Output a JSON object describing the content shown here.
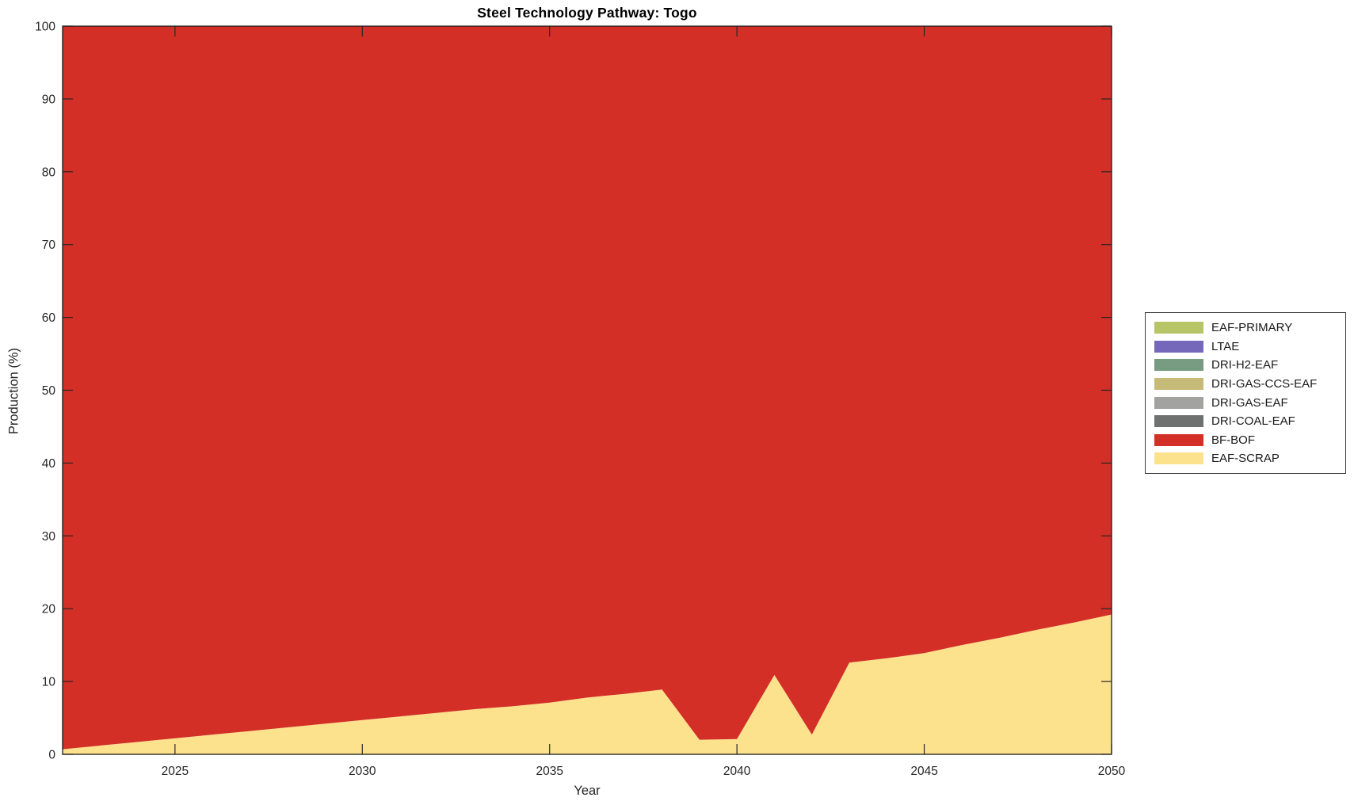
{
  "chart": {
    "title": "Steel Technology Pathway: Togo",
    "xlabel": "Year",
    "ylabel": "Production (%)"
  },
  "chart_data": {
    "type": "area",
    "stacked": true,
    "title": "Steel Technology Pathway: Togo",
    "xlabel": "Year",
    "ylabel": "Production (%)",
    "xlim": [
      2022,
      2050
    ],
    "ylim": [
      0,
      100
    ],
    "x_ticks": [
      "2025",
      "2030",
      "2035",
      "2040",
      "2045",
      "2050"
    ],
    "y_ticks": [
      "0",
      "10",
      "20",
      "30",
      "40",
      "50",
      "60",
      "70",
      "80",
      "90",
      "100"
    ],
    "grid": false,
    "legend_position": "outside-right",
    "axis_color": "#262626",
    "x": [
      2022,
      2023,
      2024,
      2025,
      2026,
      2027,
      2028,
      2029,
      2030,
      2031,
      2032,
      2033,
      2034,
      2035,
      2036,
      2037,
      2038,
      2039,
      2040,
      2041,
      2042,
      2043,
      2044,
      2045,
      2046,
      2047,
      2048,
      2049,
      2050
    ],
    "series": [
      {
        "name": "EAF-SCRAP",
        "color": "#FDE28E",
        "values": [
          0.7,
          1.2,
          1.7,
          2.2,
          2.7,
          3.2,
          3.7,
          4.2,
          4.7,
          5.2,
          5.7,
          6.2,
          6.6,
          7.1,
          7.8,
          8.3,
          8.9,
          2.0,
          2.1,
          10.9,
          2.7,
          12.6,
          13.2,
          13.9,
          15.0,
          16.0,
          17.1,
          18.1,
          19.2
        ]
      },
      {
        "name": "BF-BOF",
        "color": "#D32F27",
        "values": [
          99.3,
          98.8,
          98.3,
          97.8,
          97.3,
          96.8,
          96.3,
          95.8,
          95.3,
          94.8,
          94.3,
          93.8,
          93.4,
          92.9,
          92.2,
          91.7,
          91.1,
          98.0,
          97.9,
          89.1,
          97.3,
          87.4,
          86.8,
          86.1,
          85.0,
          84.0,
          82.9,
          81.9,
          80.8
        ]
      },
      {
        "name": "DRI-COAL-EAF",
        "color": "#6F7170",
        "values": [
          0,
          0,
          0,
          0,
          0,
          0,
          0,
          0,
          0,
          0,
          0,
          0,
          0,
          0,
          0,
          0,
          0,
          0,
          0,
          0,
          0,
          0,
          0,
          0,
          0,
          0,
          0,
          0,
          0
        ]
      },
      {
        "name": "DRI-GAS-EAF",
        "color": "#A2A2A0",
        "values": [
          0,
          0,
          0,
          0,
          0,
          0,
          0,
          0,
          0,
          0,
          0,
          0,
          0,
          0,
          0,
          0,
          0,
          0,
          0,
          0,
          0,
          0,
          0,
          0,
          0,
          0,
          0,
          0,
          0
        ]
      },
      {
        "name": "DRI-GAS-CCS-EAF",
        "color": "#C6BA78",
        "values": [
          0,
          0,
          0,
          0,
          0,
          0,
          0,
          0,
          0,
          0,
          0,
          0,
          0,
          0,
          0,
          0,
          0,
          0,
          0,
          0,
          0,
          0,
          0,
          0,
          0,
          0,
          0,
          0,
          0
        ]
      },
      {
        "name": "DRI-H2-EAF",
        "color": "#779C81",
        "values": [
          0,
          0,
          0,
          0,
          0,
          0,
          0,
          0,
          0,
          0,
          0,
          0,
          0,
          0,
          0,
          0,
          0,
          0,
          0,
          0,
          0,
          0,
          0,
          0,
          0,
          0,
          0,
          0,
          0
        ]
      },
      {
        "name": "LTAE",
        "color": "#7568BB",
        "values": [
          0,
          0,
          0,
          0,
          0,
          0,
          0,
          0,
          0,
          0,
          0,
          0,
          0,
          0,
          0,
          0,
          0,
          0,
          0,
          0,
          0,
          0,
          0,
          0,
          0,
          0,
          0,
          0,
          0
        ]
      },
      {
        "name": "EAF-PRIMARY",
        "color": "#B8C566",
        "values": [
          0,
          0,
          0,
          0,
          0,
          0,
          0,
          0,
          0,
          0,
          0,
          0,
          0,
          0,
          0,
          0,
          0,
          0,
          0,
          0,
          0,
          0,
          0,
          0,
          0,
          0,
          0,
          0,
          0
        ]
      }
    ],
    "legend_order": [
      "EAF-PRIMARY",
      "LTAE",
      "DRI-H2-EAF",
      "DRI-GAS-CCS-EAF",
      "DRI-GAS-EAF",
      "DRI-COAL-EAF",
      "BF-BOF",
      "EAF-SCRAP"
    ]
  }
}
